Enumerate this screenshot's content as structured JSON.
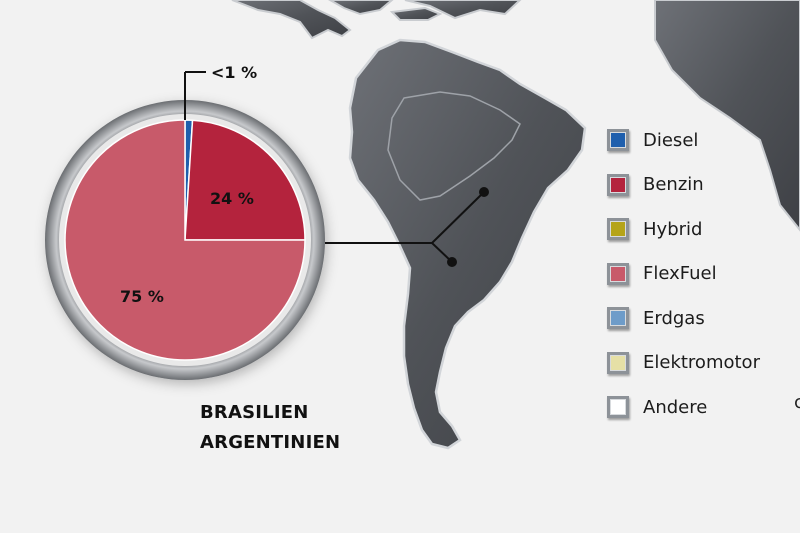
{
  "regions": [
    "BRASILIEN",
    "ARGENTINIEN"
  ],
  "stray_glyph": "c",
  "chart_data": {
    "type": "pie",
    "title": "",
    "unit": "%",
    "slices": [
      {
        "label": "Diesel",
        "value": 1,
        "color": "#1f5fad",
        "display": "<1 %"
      },
      {
        "label": "Benzin",
        "value": 24,
        "color": "#b4233d",
        "display": "24 %"
      },
      {
        "label": "FlexFuel",
        "value": 75,
        "color": "#c85a6a",
        "display": "75 %"
      }
    ],
    "legend": {
      "placement": "right",
      "items": [
        {
          "label": "Diesel",
          "color": "#1f5fad"
        },
        {
          "label": "Benzin",
          "color": "#b4233d"
        },
        {
          "label": "Hybrid",
          "color": "#b5a41a"
        },
        {
          "label": "FlexFuel",
          "color": "#c85a6a"
        },
        {
          "label": "Erdgas",
          "color": "#6e9cc9"
        },
        {
          "label": "Elektromotor",
          "color": "#e6e0a6"
        },
        {
          "label": "Andere",
          "color": "#ffffff"
        }
      ]
    }
  }
}
